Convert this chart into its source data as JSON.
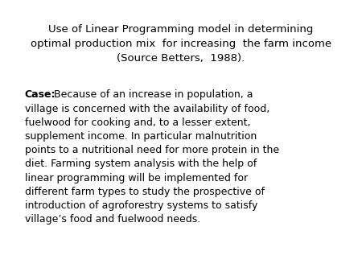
{
  "background_color": "#ffffff",
  "title_line1": "Use of Linear Programming model in determining",
  "title_line2": "optimal production mix  for increasing  the farm income",
  "title_line3": "(Source Betters,  1988).",
  "title_fontsize": 9.5,
  "title_color": "#000000",
  "body_label_bold": "Case:",
  "body_rest": " Because of an increase in population, a\nvillage is concerned with the availability of food,\nfuelwood for cooking and, to a lesser extent,\nsupplement income. In particular malnutrition\npoints to a nutritional need for more protein in the\ndiet. Farming system analysis with the help of\nlinear programming will be implemented for\ndifferent farm types to study the prospective of\nintroduction of agroforestry systems to satisfy\nvillage’s food and fuelwood needs.",
  "body_fontsize": 9.0,
  "body_color": "#000000",
  "figsize": [
    4.5,
    3.38
  ],
  "dpi": 100
}
